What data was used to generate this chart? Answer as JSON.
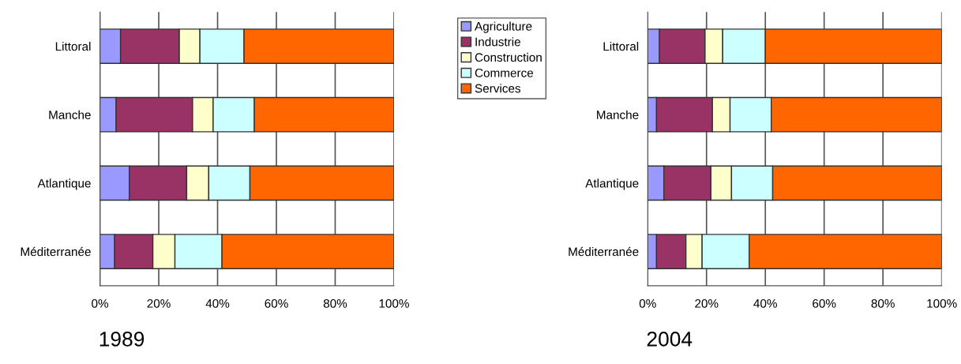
{
  "chart_data": [
    {
      "type": "bar",
      "orientation": "horizontal",
      "stacked": true,
      "title": "1989",
      "categories": [
        "Littoral",
        "Manche",
        "Atlantique",
        "Méditerranée"
      ],
      "series": [
        {
          "name": "Agriculture",
          "color": "#9999ff",
          "values": [
            7,
            5.5,
            10,
            5
          ]
        },
        {
          "name": "Industrie",
          "color": "#993366",
          "values": [
            20,
            26,
            19.5,
            13
          ]
        },
        {
          "name": "Construction",
          "color": "#ffffcc",
          "values": [
            7,
            7,
            7.5,
            7.5
          ]
        },
        {
          "name": "Commerce",
          "color": "#ccffff",
          "values": [
            15,
            14,
            14,
            16
          ]
        },
        {
          "name": "Services",
          "color": "#ff6600",
          "values": [
            51,
            47.5,
            49,
            58.5
          ]
        }
      ],
      "xlim": [
        0,
        100
      ],
      "xticks": [
        {
          "value": 0,
          "label": "0%"
        },
        {
          "value": 20,
          "label": "20%"
        },
        {
          "value": 40,
          "label": "40%"
        },
        {
          "value": 60,
          "label": "60%"
        },
        {
          "value": 80,
          "label": "80%"
        },
        {
          "value": 100,
          "label": "100%"
        }
      ],
      "grid": "x",
      "legend": "right"
    },
    {
      "type": "bar",
      "orientation": "horizontal",
      "stacked": true,
      "title": "2004",
      "categories": [
        "Littoral",
        "Manche",
        "Atlantique",
        "Méditerranée"
      ],
      "series": [
        {
          "color": "#9999ff",
          "values": [
            4,
            3,
            5.5,
            3
          ]
        },
        {
          "color": "#993366",
          "values": [
            15.5,
            19,
            16,
            10
          ]
        },
        {
          "color": "#ffffcc",
          "values": [
            6,
            6,
            7,
            5.5
          ]
        },
        {
          "color": "#ccffff",
          "values": [
            14.5,
            14,
            14,
            16
          ]
        },
        {
          "color": "#ff6600",
          "values": [
            60,
            58,
            57.5,
            65.5
          ]
        }
      ],
      "xlim": [
        0,
        100
      ],
      "xticks": [
        {
          "value": 0,
          "label": "0%"
        },
        {
          "value": 20,
          "label": "20%"
        },
        {
          "value": 40,
          "label": "40%"
        },
        {
          "value": 60,
          "label": "60%"
        },
        {
          "value": 80,
          "label": "80%"
        },
        {
          "value": 100,
          "label": "100%"
        }
      ],
      "grid": "x"
    }
  ]
}
